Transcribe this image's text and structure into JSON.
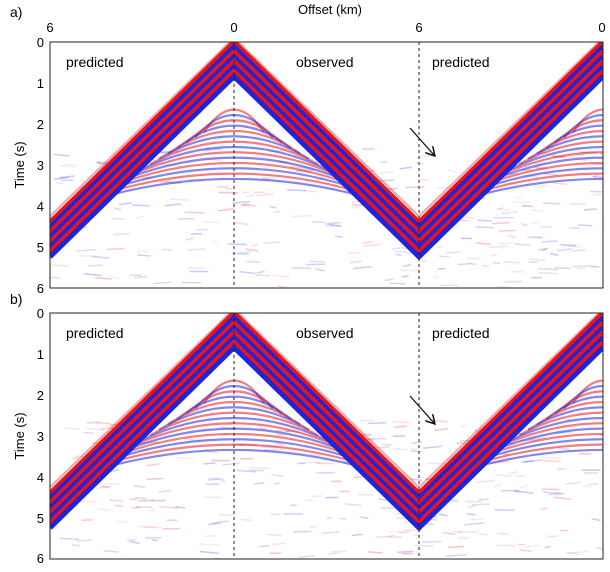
{
  "figure": {
    "x_axis_title": "Offset (km)",
    "y_axis_title": "Time (s)",
    "x_tick_labels": [
      "6",
      "0",
      "6",
      "0"
    ],
    "y_tick_labels": [
      "0",
      "1",
      "2",
      "3",
      "4",
      "5",
      "6"
    ],
    "colors": {
      "positive": "#e8141c",
      "negative": "#1f24d6",
      "background": "#ffffff",
      "divider": "#222222"
    }
  },
  "panels": [
    {
      "letter": "a)",
      "regions": [
        {
          "label": "predicted"
        },
        {
          "label": "observed"
        },
        {
          "label": "predicted"
        }
      ],
      "arrow_icon": "arrow-down-right-icon"
    },
    {
      "letter": "b)",
      "regions": [
        {
          "label": "predicted"
        },
        {
          "label": "observed"
        },
        {
          "label": "predicted"
        }
      ],
      "arrow_icon": "arrow-down-right-icon"
    }
  ]
}
